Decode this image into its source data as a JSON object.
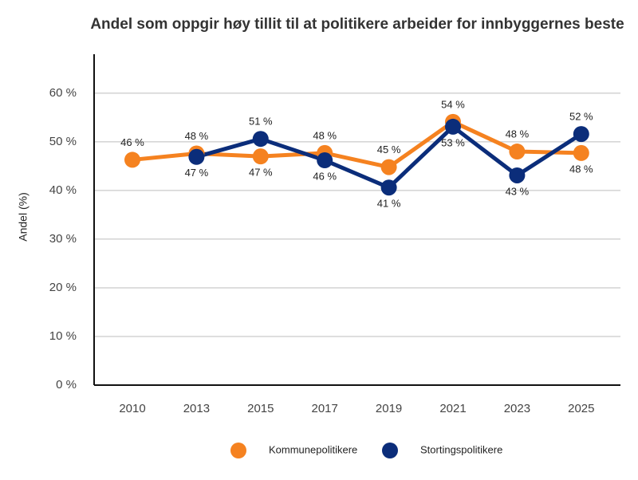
{
  "chart_data": {
    "type": "line",
    "title": "Andel som oppgir høy tillit til at politikere arbeider for innbyggernes beste",
    "y_label": "Andel (%)",
    "categories": [
      "2010",
      "2013",
      "2015",
      "2017",
      "2019",
      "2021",
      "2023",
      "2025"
    ],
    "series": [
      {
        "name": "Kommunepolitikere",
        "color": "#f58220",
        "values": [
          46.3,
          47.6,
          47.0,
          47.7,
          44.8,
          54.1,
          48.0,
          47.7
        ],
        "value_labels": [
          "46 %",
          "48 %",
          "47 %",
          "48 %",
          "45 %",
          "54 %",
          "48 %",
          "48 %"
        ]
      },
      {
        "name": "Stortingspolitikere",
        "color": "#0b2d7a",
        "values": [
          null,
          46.9,
          50.6,
          46.2,
          40.6,
          53.1,
          43.1,
          51.6
        ],
        "value_labels": [
          null,
          "47 %",
          "51 %",
          "46 %",
          "41 %",
          "53 %",
          "43 %",
          "52 %"
        ]
      }
    ],
    "ylim": [
      0,
      68
    ],
    "yticks": [
      {
        "value": 0,
        "label": "0 %"
      },
      {
        "value": 10,
        "label": "10 %"
      },
      {
        "value": 20,
        "label": "20 %"
      },
      {
        "value": 30,
        "label": "30 %"
      },
      {
        "value": 40,
        "label": "40 %"
      },
      {
        "value": 50,
        "label": "50 %"
      },
      {
        "value": 60,
        "label": "60 %"
      }
    ],
    "grid": true
  }
}
